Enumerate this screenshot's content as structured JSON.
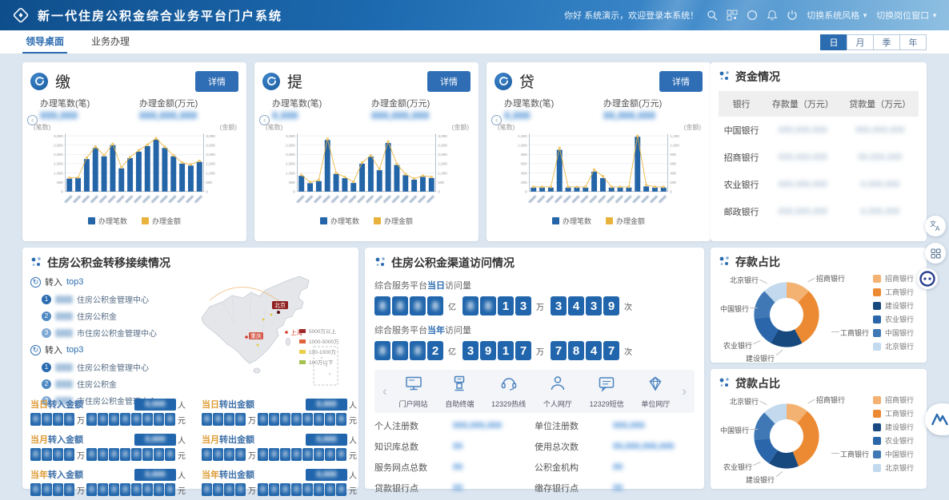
{
  "header": {
    "title": "新一代住房公积金综合业务平台门户系统",
    "greeting": "你好 系统演示，欢迎登录本系统！",
    "icon_buttons": [
      "search",
      "qr",
      "scan",
      "bell",
      "power"
    ],
    "switch_style": "切换系统风格",
    "switch_window": "切换岗位窗口"
  },
  "tabs": [
    {
      "label": "领导桌面",
      "active": true
    },
    {
      "label": "业务办理",
      "active": false
    }
  ],
  "periods": [
    {
      "label": "日",
      "active": true
    },
    {
      "label": "月",
      "active": false
    },
    {
      "label": "季",
      "active": false
    },
    {
      "label": "年",
      "active": false
    }
  ],
  "biz_cards": [
    {
      "title": "缴",
      "detail_label": "详情",
      "unit_left": "(笔数)",
      "unit_right": "(金额)",
      "stats": [
        {
          "label": "办理笔数(笔)",
          "mask": 6
        },
        {
          "label": "办理金额(万元)",
          "mask": 9
        }
      ]
    },
    {
      "title": "提",
      "detail_label": "详情",
      "unit_left": "(笔数)",
      "unit_right": "(金额)",
      "stats": [
        {
          "label": "办理笔数(笔)",
          "mask": 4
        },
        {
          "label": "办理金额(万元)",
          "mask": 9
        }
      ]
    },
    {
      "title": "贷",
      "detail_label": "详情",
      "unit_left": "(笔数)",
      "unit_right": "(金额)",
      "stats": [
        {
          "label": "办理笔数(笔)",
          "mask": 4
        },
        {
          "label": "办理金额(万元)",
          "mask": 8
        }
      ]
    }
  ],
  "chart_data": [
    {
      "type": "bar",
      "title": "缴",
      "categories_blurred": true,
      "n": 16,
      "ylim": [
        0,
        3000
      ],
      "tick_step": 500,
      "grid": true,
      "legend_position": "bottom",
      "legend": [
        "办理笔数",
        "办理金额"
      ],
      "series": [
        {
          "name": "办理笔数",
          "type": "bar",
          "color": "#2465a8",
          "values": [
            700,
            730,
            1750,
            2350,
            1900,
            2500,
            1250,
            1800,
            2150,
            2450,
            2800,
            2350,
            1900,
            1500,
            1400,
            1600
          ]
        },
        {
          "name": "办理金额",
          "type": "line",
          "color": "#e8b33c",
          "values": [
            740,
            760,
            1820,
            2420,
            1950,
            2560,
            1300,
            1850,
            2220,
            2520,
            2870,
            2400,
            1950,
            1560,
            1460,
            1650
          ]
        }
      ]
    },
    {
      "type": "bar",
      "title": "提",
      "categories_blurred": true,
      "n": 16,
      "ylim": [
        0,
        3000
      ],
      "tick_step": 500,
      "grid": true,
      "legend_position": "bottom",
      "legend": [
        "办理笔数",
        "办理金额"
      ],
      "series": [
        {
          "name": "办理笔数",
          "type": "bar",
          "color": "#2465a8",
          "values": [
            850,
            450,
            560,
            2780,
            950,
            720,
            460,
            1500,
            1880,
            1150,
            2620,
            1430,
            880,
            640,
            790,
            730
          ]
        },
        {
          "name": "办理金额",
          "type": "line",
          "color": "#e8b33c",
          "values": [
            900,
            500,
            620,
            2840,
            1000,
            780,
            520,
            1560,
            1940,
            1210,
            2690,
            1490,
            930,
            700,
            850,
            790
          ]
        }
      ]
    },
    {
      "type": "bar",
      "title": "贷",
      "categories_blurred": true,
      "n": 16,
      "ylim": [
        0,
        1200
      ],
      "tick_step": 200,
      "grid": true,
      "legend_position": "bottom",
      "legend": [
        "办理笔数",
        "办理金额"
      ],
      "series": [
        {
          "name": "办理笔数",
          "type": "bar",
          "color": "#2465a8",
          "values": [
            85,
            85,
            85,
            900,
            85,
            85,
            85,
            430,
            290,
            85,
            85,
            85,
            1180,
            110,
            85,
            85
          ]
        },
        {
          "name": "办理金额",
          "type": "line",
          "color": "#e8b33c",
          "values": [
            100,
            100,
            100,
            940,
            100,
            100,
            100,
            470,
            330,
            100,
            100,
            100,
            1200,
            140,
            100,
            100
          ]
        }
      ]
    },
    {
      "type": "pie",
      "title": "存款占比",
      "legend_position": "right",
      "slices": [
        {
          "name": "招商银行",
          "value": 12,
          "color": "#f3b272",
          "callout": "co-tr"
        },
        {
          "name": "工商银行",
          "value": 30,
          "color": "#ec8a33",
          "callout": "co-r"
        },
        {
          "name": "建设银行",
          "value": 16,
          "color": "#17497f",
          "callout": "co-b"
        },
        {
          "name": "农业银行",
          "value": 15,
          "color": "#2a66a9",
          "callout": "co-bl"
        },
        {
          "name": "中国银行",
          "value": 15,
          "color": "#3f78b5",
          "callout": "co-l"
        },
        {
          "name": "北京银行",
          "value": 12,
          "color": "#c2d9ee",
          "callout": "co-tl"
        }
      ]
    },
    {
      "type": "pie",
      "title": "贷款占比",
      "legend_position": "right",
      "slices": [
        {
          "name": "招商银行",
          "value": 11,
          "color": "#f3b272",
          "callout": "co-tr"
        },
        {
          "name": "工商银行",
          "value": 33,
          "color": "#ec8a33",
          "callout": "co-r"
        },
        {
          "name": "建设银行",
          "value": 15,
          "color": "#17497f",
          "callout": "co-b"
        },
        {
          "name": "农业银行",
          "value": 14,
          "color": "#2a66a9",
          "callout": "co-bl"
        },
        {
          "name": "中国银行",
          "value": 15,
          "color": "#3f78b5",
          "callout": "co-l"
        },
        {
          "name": "北京银行",
          "value": 12,
          "color": "#c2d9ee",
          "callout": "co-tl"
        }
      ]
    }
  ],
  "funds": {
    "title": "资金情况",
    "columns": [
      "银行",
      "存款量（万元）",
      "贷款量（万元）"
    ],
    "rows": [
      {
        "bank": "中国银行",
        "deposit_mask": 9,
        "loan_mask": 9
      },
      {
        "bank": "招商银行",
        "deposit_mask": 9,
        "loan_mask": 8
      },
      {
        "bank": "农业银行",
        "deposit_mask": 9,
        "loan_mask": 7
      },
      {
        "bank": "邮政银行",
        "deposit_mask": 9,
        "loan_mask": 7
      }
    ]
  },
  "transfer": {
    "title": "住房公积金转移接续情况",
    "top_lists": [
      {
        "name": "转入",
        "suffix": "top3",
        "items": [
          {
            "prefix_mask": 2,
            "text": "住房公积金管理中心"
          },
          {
            "prefix_mask": 2,
            "text": "住房公积金"
          },
          {
            "prefix_mask": 2,
            "text": "市住房公积金管理中心"
          }
        ]
      },
      {
        "name": "转入",
        "suffix": "top3",
        "items": [
          {
            "prefix_mask": 2,
            "text": "住房公积金管理中心"
          },
          {
            "prefix_mask": 2,
            "text": "住房公积金"
          },
          {
            "prefix_mask": 2,
            "text": "市住房公积金管理中心"
          }
        ]
      }
    ],
    "map": {
      "cities": [
        {
          "name": "北京",
          "style": "dark"
        },
        {
          "name": "上海",
          "style": "red"
        },
        {
          "name": "重庆",
          "style": "red"
        }
      ],
      "legend": [
        {
          "label": "5000万以上",
          "color": "#9e2a2a"
        },
        {
          "label": "1000-5000万",
          "color": "#e0623b"
        },
        {
          "label": "100-1000万",
          "color": "#e9d04b"
        },
        {
          "label": "100万以下",
          "color": "#a4c24e"
        }
      ]
    },
    "amount_rows": [
      {
        "period": "当日",
        "action": "转入金额",
        "person_unit": "人",
        "wan_boxes": 4,
        "yuan_boxes": 8,
        "wan_unit": "万",
        "yuan_unit": "元"
      },
      {
        "period": "当日",
        "action": "转出金额",
        "person_unit": "人",
        "wan_boxes": 4,
        "yuan_boxes": 8,
        "wan_unit": "万",
        "yuan_unit": "元"
      },
      {
        "period": "当月",
        "action": "转入金额",
        "person_unit": "人",
        "wan_boxes": 4,
        "yuan_boxes": 8,
        "wan_unit": "万",
        "yuan_unit": "元"
      },
      {
        "period": "当月",
        "action": "转出金额",
        "person_unit": "人",
        "wan_boxes": 4,
        "yuan_boxes": 8,
        "wan_unit": "万",
        "yuan_unit": "元"
      },
      {
        "period": "当年",
        "action": "转入金额",
        "person_unit": "人",
        "wan_boxes": 4,
        "yuan_boxes": 8,
        "wan_unit": "万",
        "yuan_unit": "元"
      },
      {
        "period": "当年",
        "action": "转出金额",
        "person_unit": "人",
        "wan_boxes": 4,
        "yuan_boxes": 8,
        "wan_unit": "万",
        "yuan_unit": "元"
      }
    ]
  },
  "channel": {
    "title": "住房公积金渠道访问情况",
    "visit_rows": [
      {
        "prefix": "综合服务平台",
        "period": "当日",
        "suffix": "访问量",
        "groups": [
          {
            "unit": "亿",
            "digits": [
              null,
              null,
              null,
              null
            ]
          },
          {
            "unit": "万",
            "digits": [
              null,
              null,
              "1",
              "3"
            ]
          },
          {
            "unit": "次",
            "digits": [
              "3",
              "4",
              "3",
              "9"
            ]
          }
        ]
      },
      {
        "prefix": "综合服务平台",
        "period": "当年",
        "suffix": "访问量",
        "groups": [
          {
            "unit": "亿",
            "digits": [
              null,
              null,
              null,
              "2"
            ]
          },
          {
            "unit": "万",
            "digits": [
              "3",
              "9",
              "1",
              "7"
            ]
          },
          {
            "unit": "次",
            "digits": [
              "7",
              "8",
              "4",
              "7"
            ]
          }
        ]
      }
    ],
    "channels": [
      {
        "icon": "monitor",
        "label": "门户网站"
      },
      {
        "icon": "kiosk",
        "label": "自助终端"
      },
      {
        "icon": "hotline",
        "label": "12329热线"
      },
      {
        "icon": "person",
        "label": "个人网厅"
      },
      {
        "icon": "message",
        "label": "12329短信"
      },
      {
        "icon": "gem",
        "label": "单位网厅"
      }
    ],
    "stats": [
      {
        "label": "个人注册数",
        "mask": 9
      },
      {
        "label": "单位注册数",
        "mask": 6
      },
      {
        "label": "知识库总数",
        "mask": 2
      },
      {
        "label": "使用总次数",
        "mask": 11
      },
      {
        "label": "服务网点总数",
        "mask": 2
      },
      {
        "label": "公积金机构",
        "mask": 2
      },
      {
        "label": "贷款银行点",
        "mask": 2
      },
      {
        "label": "缴存银行点",
        "mask": 2
      }
    ]
  },
  "colors": {
    "accent": "#2b6cb0",
    "bar": "#2465a8",
    "line": "#e8b33c",
    "digit_box": "#2166ac"
  }
}
